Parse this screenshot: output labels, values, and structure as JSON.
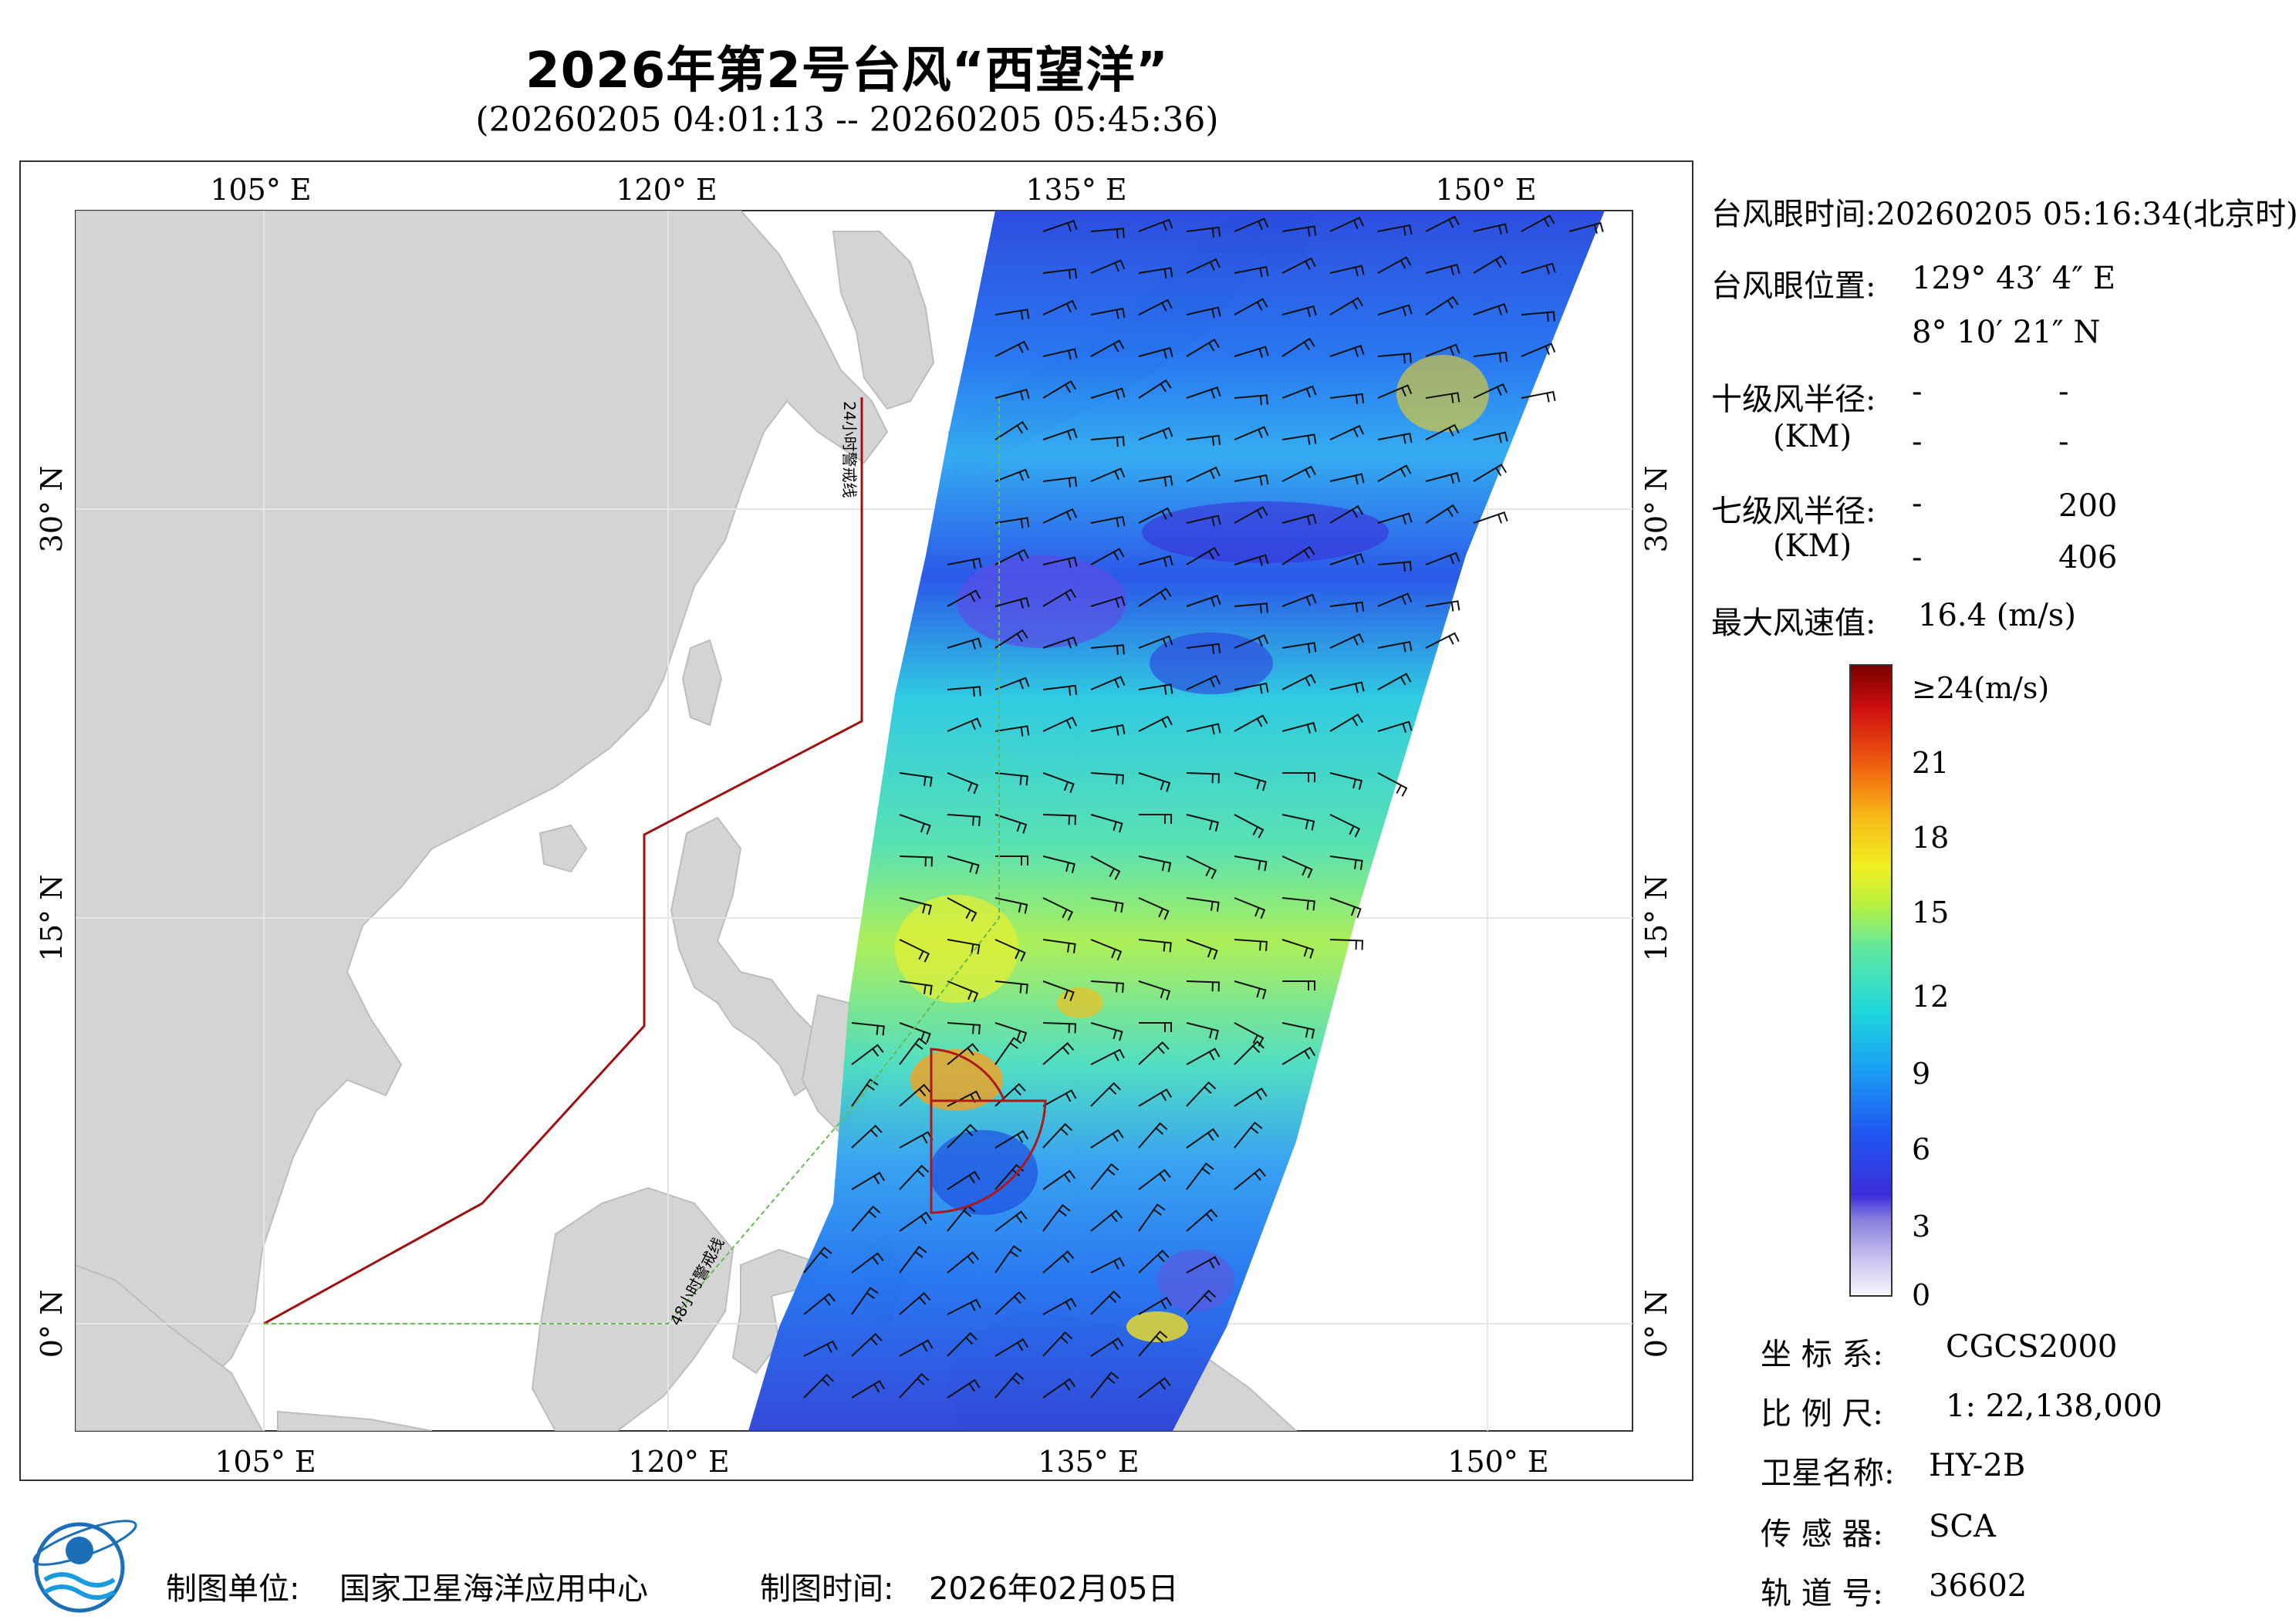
{
  "header": {
    "title": "2026年第2号台风“西望洋”",
    "time_range": "(20260205 04:01:13 -- 20260205 05:45:36)"
  },
  "map": {
    "lon_ticks": [
      "105° E",
      "120° E",
      "135° E",
      "150° E"
    ],
    "lat_ticks": [
      "30° N",
      "15° N",
      "0° N"
    ],
    "line_24h": "24小时警戒线",
    "line_48h": "48小时警戒线",
    "colors": {
      "land": "#d4d4d4",
      "sea": "#ffffff",
      "line_24h": "#a01010",
      "line_48h": "#66bb55"
    }
  },
  "typhoon_info": {
    "eye_time_label": "台风眼时间:",
    "eye_time": "20260205 05:16:34(北京时)",
    "eye_pos_label": "台风眼位置:",
    "eye_lon": "129° 43′ 4″ E",
    "eye_lat": "8° 10′ 21″ N",
    "r10_label": "十级风半径:",
    "r10_unit": "(KM)",
    "r10_values": [
      "-",
      "-",
      "-",
      "-"
    ],
    "r7_label": "七级风半径:",
    "r7_unit": "(KM)",
    "r7_values": [
      "-",
      "200",
      "-",
      "406"
    ],
    "max_wind_label": "最大风速值:",
    "max_wind": "16.4 (m/s)"
  },
  "colorbar": {
    "labels": [
      "≥24(m/s)",
      "21",
      "18",
      "15",
      "12",
      "9",
      "6",
      "3",
      "0"
    ],
    "colors": [
      "#f8f8ff",
      "#c8c0ee",
      "#8a80de",
      "#3b2ddc",
      "#1f58f0",
      "#1aa0f4",
      "#1fd6dc",
      "#60e8a0",
      "#b8f040",
      "#f0f020",
      "#f8b818",
      "#f06010",
      "#d01010",
      "#7a0000"
    ]
  },
  "meta": {
    "crs_label": "坐 标 系:",
    "crs": "CGCS2000",
    "scale_label": "比 例 尺:",
    "scale": "1: 22,138,000",
    "sat_label": "卫星名称:",
    "sat": "HY-2B",
    "sensor_label": "传 感 器:",
    "sensor": "SCA",
    "orbit_label": "轨 道 号:",
    "orbit": "36602"
  },
  "footer": {
    "org_label": "制图单位:",
    "org": "国家卫星海洋应用中心",
    "date_label": "制图时间:",
    "date": "2026年02月05日"
  }
}
